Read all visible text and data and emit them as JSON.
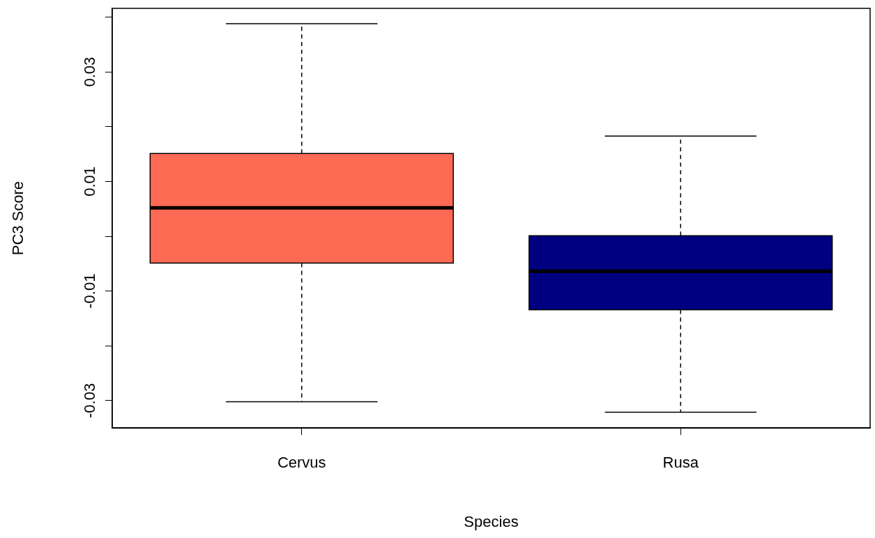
{
  "chart_data": {
    "type": "box",
    "xlabel": "Species",
    "ylabel": "PC3 Score",
    "categories": [
      "Cervus",
      "Rusa"
    ],
    "colors": [
      "#ff6a55",
      "#000080"
    ],
    "boxes": [
      {
        "low": -0.0302,
        "q1": -0.0049,
        "median": 0.0052,
        "q3": 0.0151,
        "high": 0.0388
      },
      {
        "low": -0.0321,
        "q1": -0.0134,
        "median": -0.0064,
        "q3": 0.0001,
        "high": 0.0183
      }
    ],
    "ylim": [
      -0.035,
      0.0416
    ],
    "yticks": [
      {
        "value": -0.03,
        "label": "-0.03"
      },
      {
        "value": -0.02,
        "label": null
      },
      {
        "value": -0.01,
        "label": "-0.01"
      },
      {
        "value": 0,
        "label": null
      },
      {
        "value": 0.01,
        "label": "0.01"
      },
      {
        "value": 0.02,
        "label": null
      },
      {
        "value": 0.03,
        "label": "0.03"
      },
      {
        "value": 0.04,
        "label": null
      }
    ]
  }
}
